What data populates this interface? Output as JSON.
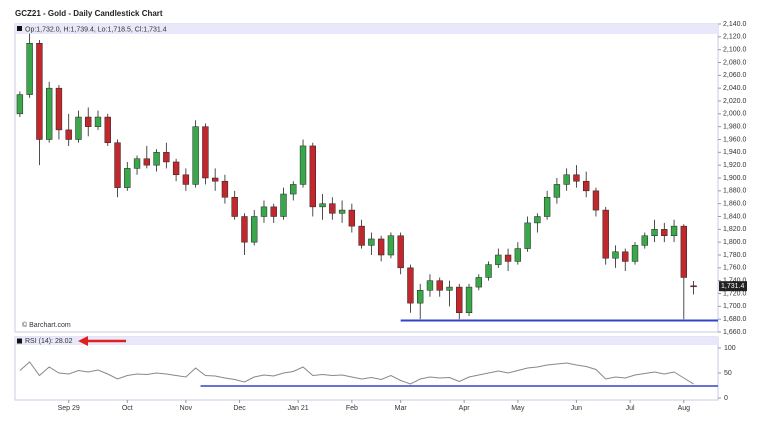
{
  "chart_data": {
    "type": "candlestick",
    "title": "GCZ21 - Gold - Daily Candlestick Chart",
    "info": "Op:1,732.0, H:1,739.4, Lo:1,718.5, Cl:1,731.4",
    "credit": "© Barchart.com",
    "up_color": "#3aa84a",
    "down_color": "#c0282d",
    "candles": [
      [
        2000,
        2035,
        1995,
        2030
      ],
      [
        2030,
        2125,
        2025,
        2110
      ],
      [
        2110,
        2115,
        1920,
        1960
      ],
      [
        1960,
        2050,
        1955,
        2040
      ],
      [
        2040,
        2045,
        1960,
        1975
      ],
      [
        1975,
        2000,
        1950,
        1960
      ],
      [
        1960,
        2005,
        1955,
        1995
      ],
      [
        1995,
        2010,
        1965,
        1980
      ],
      [
        1980,
        2005,
        1975,
        1995
      ],
      [
        1995,
        2000,
        1950,
        1955
      ],
      [
        1955,
        1960,
        1870,
        1885
      ],
      [
        1885,
        1925,
        1880,
        1915
      ],
      [
        1915,
        1935,
        1905,
        1930
      ],
      [
        1930,
        1950,
        1915,
        1920
      ],
      [
        1920,
        1945,
        1910,
        1940
      ],
      [
        1940,
        1955,
        1915,
        1925
      ],
      [
        1925,
        1930,
        1895,
        1905
      ],
      [
        1905,
        1915,
        1880,
        1890
      ],
      [
        1890,
        1990,
        1885,
        1980
      ],
      [
        1980,
        1985,
        1890,
        1900
      ],
      [
        1900,
        1915,
        1880,
        1895
      ],
      [
        1895,
        1905,
        1860,
        1870
      ],
      [
        1870,
        1880,
        1835,
        1840
      ],
      [
        1840,
        1845,
        1780,
        1800
      ],
      [
        1800,
        1850,
        1795,
        1840
      ],
      [
        1840,
        1865,
        1830,
        1855
      ],
      [
        1855,
        1860,
        1830,
        1840
      ],
      [
        1840,
        1885,
        1835,
        1875
      ],
      [
        1875,
        1895,
        1865,
        1890
      ],
      [
        1890,
        1960,
        1885,
        1950
      ],
      [
        1950,
        1955,
        1840,
        1855
      ],
      [
        1855,
        1875,
        1835,
        1860
      ],
      [
        1860,
        1870,
        1835,
        1845
      ],
      [
        1845,
        1865,
        1830,
        1850
      ],
      [
        1850,
        1860,
        1815,
        1825
      ],
      [
        1825,
        1835,
        1790,
        1795
      ],
      [
        1795,
        1815,
        1780,
        1805
      ],
      [
        1805,
        1810,
        1770,
        1780
      ],
      [
        1780,
        1815,
        1775,
        1810
      ],
      [
        1810,
        1815,
        1750,
        1760
      ],
      [
        1760,
        1765,
        1690,
        1705
      ],
      [
        1705,
        1735,
        1680,
        1725
      ],
      [
        1725,
        1750,
        1715,
        1740
      ],
      [
        1740,
        1745,
        1715,
        1725
      ],
      [
        1725,
        1740,
        1700,
        1730
      ],
      [
        1730,
        1735,
        1680,
        1690
      ],
      [
        1690,
        1735,
        1685,
        1730
      ],
      [
        1730,
        1750,
        1725,
        1745
      ],
      [
        1745,
        1770,
        1740,
        1765
      ],
      [
        1765,
        1790,
        1760,
        1780
      ],
      [
        1780,
        1790,
        1755,
        1770
      ],
      [
        1770,
        1800,
        1765,
        1790
      ],
      [
        1790,
        1840,
        1785,
        1830
      ],
      [
        1830,
        1845,
        1815,
        1840
      ],
      [
        1840,
        1880,
        1835,
        1870
      ],
      [
        1870,
        1900,
        1860,
        1890
      ],
      [
        1890,
        1915,
        1880,
        1905
      ],
      [
        1905,
        1920,
        1885,
        1895
      ],
      [
        1895,
        1910,
        1870,
        1880
      ],
      [
        1880,
        1885,
        1840,
        1850
      ],
      [
        1850,
        1855,
        1765,
        1775
      ],
      [
        1775,
        1795,
        1760,
        1785
      ],
      [
        1785,
        1790,
        1755,
        1770
      ],
      [
        1770,
        1800,
        1765,
        1795
      ],
      [
        1795,
        1815,
        1790,
        1810
      ],
      [
        1810,
        1835,
        1800,
        1820
      ],
      [
        1820,
        1830,
        1800,
        1810
      ],
      [
        1810,
        1835,
        1800,
        1825
      ],
      [
        1825,
        1828,
        1680,
        1745
      ],
      [
        1732.0,
        1739.4,
        1718.5,
        1731.4
      ]
    ],
    "last_price": {
      "value": 1731.4,
      "label": "1,731.4"
    },
    "support": {
      "value": 1678,
      "from": 39
    },
    "xlim": [
      -0.5,
      71.5
    ],
    "xticks": [
      {
        "value": 5,
        "label": "Sep 29"
      },
      {
        "value": 11,
        "label": "Oct"
      },
      {
        "value": 17,
        "label": "Nov"
      },
      {
        "value": 22.5,
        "label": "Dec"
      },
      {
        "value": 28.5,
        "label": "Jan 21"
      },
      {
        "value": 34,
        "label": "Feb"
      },
      {
        "value": 39,
        "label": "Mar"
      },
      {
        "value": 45.5,
        "label": "Apr"
      },
      {
        "value": 51,
        "label": "May"
      },
      {
        "value": 57,
        "label": "Jun"
      },
      {
        "value": 62.5,
        "label": "Jul"
      },
      {
        "value": 68,
        "label": "Aug"
      }
    ],
    "ylim": [
      1660,
      2140
    ],
    "yticks": [
      {
        "value": 2140,
        "label": "2,140.0"
      },
      {
        "value": 2120,
        "label": "2,120.0"
      },
      {
        "value": 2100,
        "label": "2,100.0"
      },
      {
        "value": 2080,
        "label": "2,080.0"
      },
      {
        "value": 2060,
        "label": "2,060.0"
      },
      {
        "value": 2040,
        "label": "2,040.0"
      },
      {
        "value": 2020,
        "label": "2,020.0"
      },
      {
        "value": 2000,
        "label": "2,000.0"
      },
      {
        "value": 1980,
        "label": "1,980.0"
      },
      {
        "value": 1960,
        "label": "1,960.0"
      },
      {
        "value": 1940,
        "label": "1,940.0"
      },
      {
        "value": 1920,
        "label": "1,920.0"
      },
      {
        "value": 1900,
        "label": "1,900.0"
      },
      {
        "value": 1880,
        "label": "1,880.0"
      },
      {
        "value": 1860,
        "label": "1,860.0"
      },
      {
        "value": 1840,
        "label": "1,840.0"
      },
      {
        "value": 1820,
        "label": "1,820.0"
      },
      {
        "value": 1800,
        "label": "1,800.0"
      },
      {
        "value": 1780,
        "label": "1,780.0"
      },
      {
        "value": 1760,
        "label": "1,760.0"
      },
      {
        "value": 1740,
        "label": "1,740.0"
      },
      {
        "value": 1720,
        "label": "1,720.0"
      },
      {
        "value": 1700,
        "label": "1,700.0"
      },
      {
        "value": 1680,
        "label": "1,680.0"
      },
      {
        "value": 1660,
        "label": "1,660.0"
      }
    ],
    "rsi": {
      "label": "RSI (14): 28.02",
      "color": "#888888",
      "values": [
        55,
        72,
        45,
        62,
        50,
        48,
        55,
        52,
        56,
        48,
        38,
        45,
        48,
        47,
        50,
        48,
        45,
        42,
        60,
        45,
        44,
        40,
        37,
        32,
        42,
        46,
        44,
        50,
        53,
        62,
        45,
        47,
        45,
        46,
        42,
        38,
        41,
        37,
        45,
        35,
        28,
        38,
        42,
        40,
        41,
        33,
        42,
        46,
        50,
        54,
        50,
        55,
        60,
        62,
        66,
        68,
        70,
        66,
        63,
        57,
        38,
        42,
        40,
        46,
        49,
        52,
        48,
        52,
        40,
        28.02
      ],
      "ylim": [
        0,
        100
      ],
      "yticks": [
        100,
        50,
        0
      ],
      "support": {
        "value": 24,
        "from": 18.5
      }
    },
    "line_color": "#3344cc"
  }
}
